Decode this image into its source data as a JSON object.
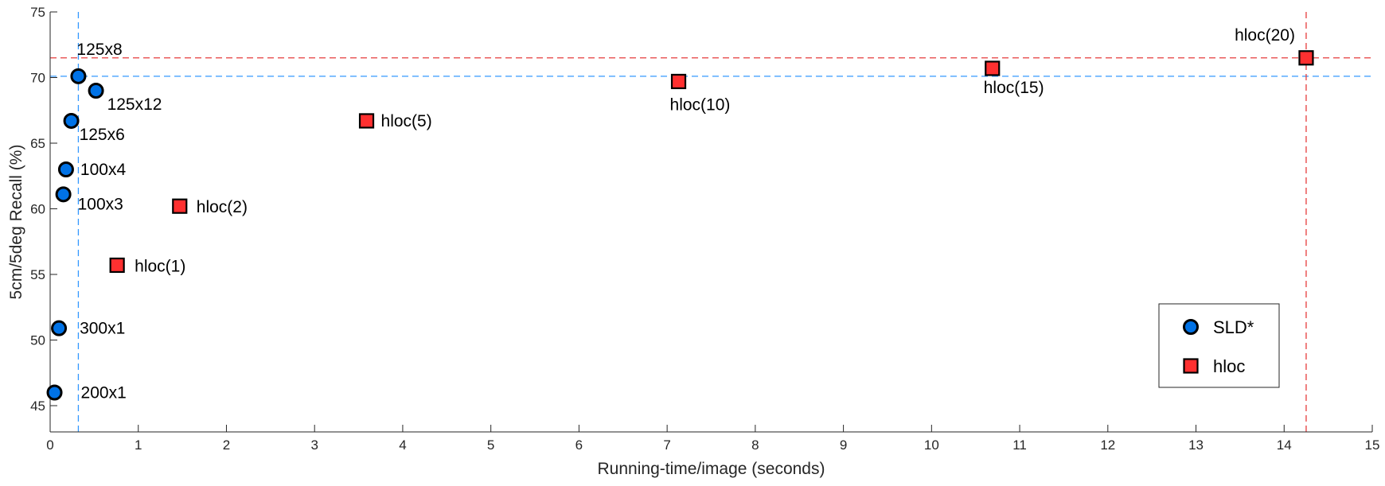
{
  "chart_data": {
    "type": "scatter",
    "xlabel": "Running-time/image (seconds)",
    "ylabel": "5cm/5deg Recall (%)",
    "xlim": [
      0,
      15
    ],
    "ylim": [
      43,
      75
    ],
    "xticks": [
      0,
      1,
      2,
      3,
      4,
      5,
      6,
      7,
      8,
      9,
      10,
      11,
      12,
      13,
      14,
      15
    ],
    "yticks": [
      45,
      50,
      55,
      60,
      65,
      70,
      75
    ],
    "grid": false,
    "legend_position": "bottom-right",
    "series": [
      {
        "name": "SLD*",
        "marker": "circle",
        "color": "#0072e6",
        "points": [
          {
            "label": "125x8",
            "x": 0.32,
            "y": 70.1
          },
          {
            "label": "125x12",
            "x": 0.52,
            "y": 69.0
          },
          {
            "label": "125x6",
            "x": 0.24,
            "y": 66.7
          },
          {
            "label": "100x4",
            "x": 0.18,
            "y": 63.0
          },
          {
            "label": "100x3",
            "x": 0.15,
            "y": 61.1
          },
          {
            "label": "300x1",
            "x": 0.1,
            "y": 50.9
          },
          {
            "label": "200x1",
            "x": 0.05,
            "y": 46.0
          }
        ]
      },
      {
        "name": "hloc",
        "marker": "square",
        "color": "#ff3030",
        "points": [
          {
            "label": "hloc(1)",
            "x": 0.76,
            "y": 55.7
          },
          {
            "label": "hloc(2)",
            "x": 1.47,
            "y": 60.2
          },
          {
            "label": "hloc(5)",
            "x": 3.59,
            "y": 66.7
          },
          {
            "label": "hloc(10)",
            "x": 7.13,
            "y": 69.7
          },
          {
            "label": "hloc(15)",
            "x": 10.69,
            "y": 70.7
          },
          {
            "label": "hloc(20)",
            "x": 14.25,
            "y": 71.5
          }
        ]
      }
    ],
    "reference_lines": [
      {
        "orientation": "vertical",
        "value": 0.32,
        "color": "#3399ff"
      },
      {
        "orientation": "horizontal",
        "value": 70.1,
        "color": "#3399ff"
      },
      {
        "orientation": "vertical",
        "value": 14.25,
        "color": "#e63c3c"
      },
      {
        "orientation": "horizontal",
        "value": 71.5,
        "color": "#e63c3c"
      }
    ]
  }
}
